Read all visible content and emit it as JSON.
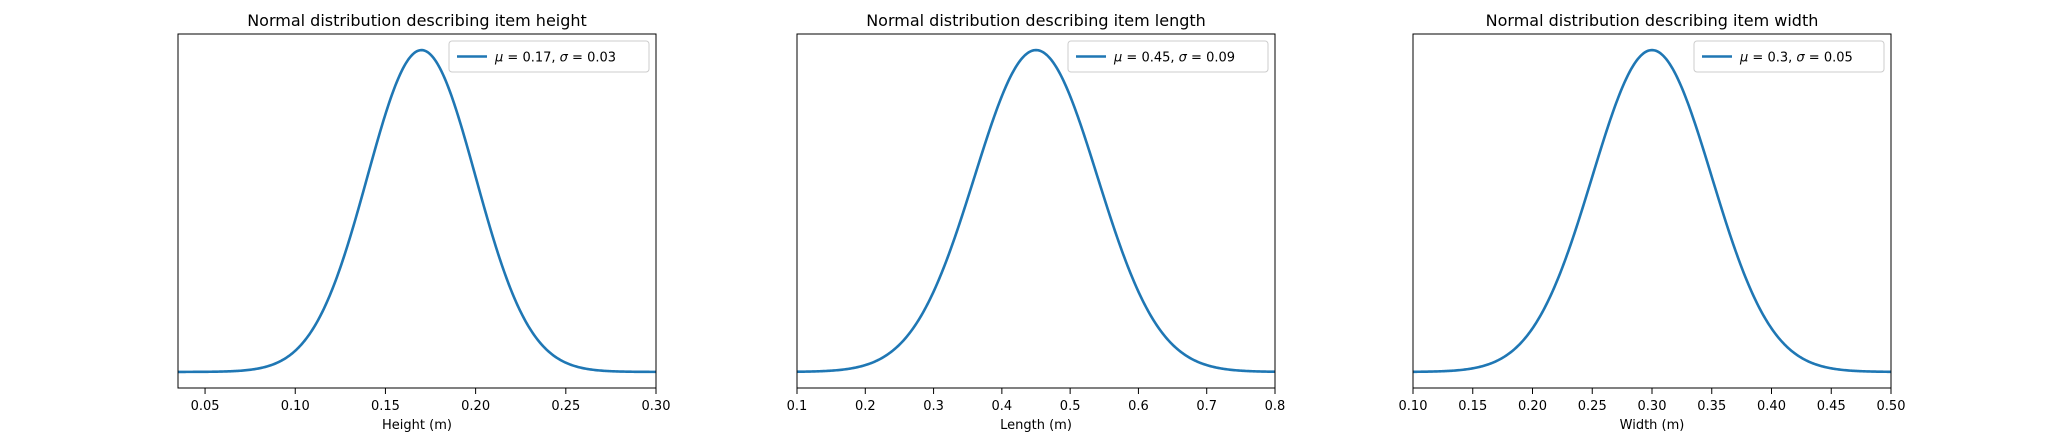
{
  "figure": {
    "line_color": "#1f77b4",
    "background": "#ffffff"
  },
  "chart_data": [
    {
      "type": "line",
      "title": "Normal distribution describing item height",
      "xlabel": "Height (m)",
      "ylabel": "",
      "mu": 0.17,
      "sigma": 0.03,
      "legend": {
        "mu_text": "0.17",
        "sigma_text": "0.03",
        "position": "upper right"
      },
      "xlim": [
        0.035,
        0.3
      ],
      "ylim_ratio": [
        -0.05,
        1.05
      ],
      "xticks": [
        {
          "value": 0.05,
          "label": "0.05"
        },
        {
          "value": 0.1,
          "label": "0.10"
        },
        {
          "value": 0.15,
          "label": "0.15"
        },
        {
          "value": 0.2,
          "label": "0.20"
        },
        {
          "value": 0.25,
          "label": "0.25"
        },
        {
          "value": 0.3,
          "label": "0.30"
        }
      ],
      "y_ticks_visible": false,
      "grid": false
    },
    {
      "type": "line",
      "title": "Normal distribution describing item length",
      "xlabel": "Length (m)",
      "ylabel": "",
      "mu": 0.45,
      "sigma": 0.09,
      "legend": {
        "mu_text": "0.45",
        "sigma_text": "0.09",
        "position": "upper right"
      },
      "xlim": [
        0.1,
        0.8
      ],
      "ylim_ratio": [
        -0.05,
        1.05
      ],
      "xticks": [
        {
          "value": 0.1,
          "label": "0.1"
        },
        {
          "value": 0.2,
          "label": "0.2"
        },
        {
          "value": 0.3,
          "label": "0.3"
        },
        {
          "value": 0.4,
          "label": "0.4"
        },
        {
          "value": 0.5,
          "label": "0.5"
        },
        {
          "value": 0.6,
          "label": "0.6"
        },
        {
          "value": 0.7,
          "label": "0.7"
        },
        {
          "value": 0.8,
          "label": "0.8"
        }
      ],
      "y_ticks_visible": false,
      "grid": false
    },
    {
      "type": "line",
      "title": "Normal distribution describing item width",
      "xlabel": "Width (m)",
      "ylabel": "",
      "mu": 0.3,
      "sigma": 0.05,
      "legend": {
        "mu_text": "0.3",
        "sigma_text": "0.05",
        "position": "upper right"
      },
      "xlim": [
        0.1,
        0.5
      ],
      "ylim_ratio": [
        -0.05,
        1.05
      ],
      "xticks": [
        {
          "value": 0.1,
          "label": "0.10"
        },
        {
          "value": 0.15,
          "label": "0.15"
        },
        {
          "value": 0.2,
          "label": "0.20"
        },
        {
          "value": 0.25,
          "label": "0.25"
        },
        {
          "value": 0.3,
          "label": "0.30"
        },
        {
          "value": 0.35,
          "label": "0.35"
        },
        {
          "value": 0.4,
          "label": "0.40"
        },
        {
          "value": 0.45,
          "label": "0.45"
        },
        {
          "value": 0.5,
          "label": "0.50"
        }
      ],
      "y_ticks_visible": false,
      "grid": false
    }
  ]
}
